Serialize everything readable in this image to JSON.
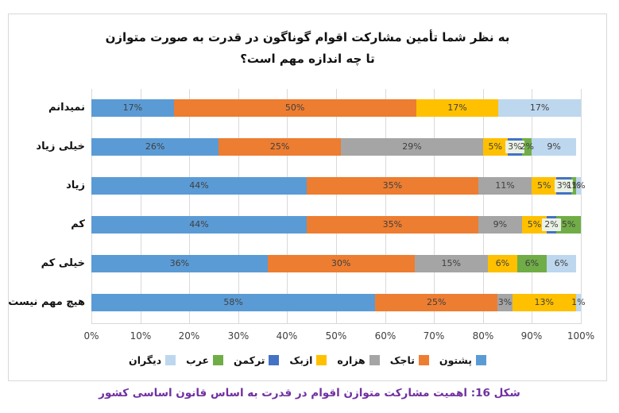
{
  "title": {
    "line1": "به نظر شما  تأمین مشارکت اقوام گوناگون در قدرت به صورت متوازن",
    "line2": "تا چه اندازه مهم است؟"
  },
  "caption": "شکل 16: اهمیت مشارکت متوازن اقوام در قدرت به اساس قانون اساسی کشور",
  "colors": {
    "grid": "#D9D9D9",
    "frame_border": "#D9D9D9",
    "caption_text": "#7030A0",
    "data_label_text": "#3F3F3F",
    "turkmen_label_background": "#EBF2E5"
  },
  "chart_data": {
    "type": "bar",
    "orientation": "horizontal-stacked",
    "title": "به نظر شما  تأمین مشارکت اقوام گوناگون در قدرت به صورت متوازن تا چه اندازه مهم است؟",
    "categories": [
      "نمیدانم",
      "خیلی زیاد",
      "زیاد",
      "کم",
      "خیلی کم",
      "هیچ مهم نیست"
    ],
    "series": [
      {
        "name": "پشتون",
        "color": "#5B9BD5",
        "values": [
          17,
          26,
          44,
          44,
          36,
          58
        ]
      },
      {
        "name": "تاجک",
        "color": "#ED7D31",
        "values": [
          50,
          25,
          35,
          35,
          30,
          25
        ]
      },
      {
        "name": "هزاره",
        "color": "#A5A5A5",
        "values": [
          0,
          29,
          11,
          9,
          15,
          3
        ]
      },
      {
        "name": "ازبک",
        "color": "#FFC000",
        "values": [
          17,
          5,
          5,
          5,
          6,
          13
        ]
      },
      {
        "name": "ترکمن",
        "color": "#4472C4",
        "values": [
          0,
          3,
          3,
          2,
          0,
          0
        ],
        "label_background": "#EBF2E5"
      },
      {
        "name": "عرب",
        "color": "#70AD47",
        "values": [
          0,
          2,
          1,
          5,
          6,
          0
        ]
      },
      {
        "name": "دیگران",
        "color": "#BDD7EE",
        "values": [
          17,
          9,
          1,
          0,
          6,
          1
        ]
      }
    ],
    "data_label_format": "{value}%",
    "x_ticks": [
      "0%",
      "10%",
      "20%",
      "30%",
      "40%",
      "50%",
      "60%",
      "70%",
      "80%",
      "90%",
      "100%"
    ],
    "xlim": [
      0,
      100
    ],
    "grid": true,
    "legend_position": "bottom"
  }
}
